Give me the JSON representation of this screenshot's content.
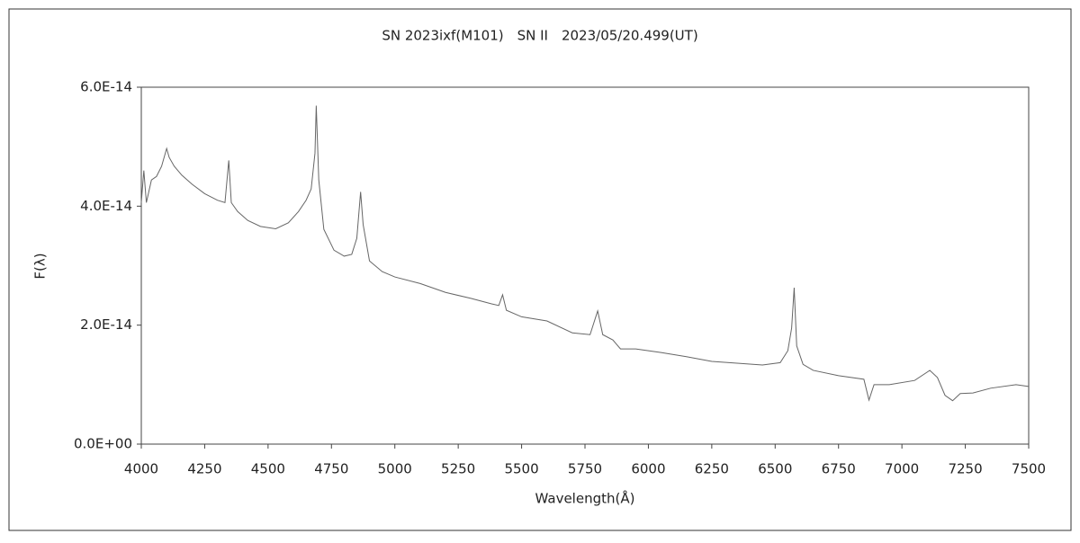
{
  "chart_data": {
    "type": "line",
    "title": "SN 2023ixf(M101)　SN II　2023/05/20.499(UT)",
    "x_label": "Wavelength(Å)",
    "y_label": "F(λ)",
    "xlim": [
      4000,
      7500
    ],
    "xticks": [
      4000,
      4250,
      4500,
      4750,
      5000,
      5250,
      5500,
      5750,
      6000,
      6250,
      6500,
      6750,
      7000,
      7250,
      7500
    ],
    "ylim": [
      0,
      6e-14
    ],
    "yticks": [
      {
        "value": 0,
        "label": "0.0E+00"
      },
      {
        "value": 2e-14,
        "label": "2.0E-14"
      },
      {
        "value": 4e-14,
        "label": "4.0E-14"
      },
      {
        "value": 6e-14,
        "label": "6.0E-14"
      }
    ],
    "series": [
      {
        "color": "#666666",
        "x": [
          4000,
          4010,
          4020,
          4040,
          4060,
          4080,
          4100,
          4110,
          4130,
          4160,
          4200,
          4250,
          4300,
          4330,
          4345,
          4355,
          4380,
          4420,
          4470,
          4530,
          4580,
          4620,
          4650,
          4670,
          4685,
          4690,
          4700,
          4720,
          4760,
          4800,
          4830,
          4850,
          4865,
          4875,
          4900,
          4950,
          5000,
          5100,
          5200,
          5300,
          5380,
          5410,
          5425,
          5440,
          5500,
          5600,
          5700,
          5770,
          5800,
          5820,
          5860,
          5890,
          5950,
          6050,
          6150,
          6250,
          6350,
          6450,
          6520,
          6550,
          6565,
          6575,
          6585,
          6610,
          6650,
          6750,
          6850,
          6870,
          6890,
          6950,
          7050,
          7110,
          7140,
          7170,
          7200,
          7230,
          7280,
          7350,
          7450,
          7500
        ],
        "values": [
          4.06e-14,
          4.6e-14,
          4.06e-14,
          4.44e-14,
          4.5e-14,
          4.67e-14,
          4.97e-14,
          4.82e-14,
          4.67e-14,
          4.52e-14,
          4.37e-14,
          4.21e-14,
          4.1e-14,
          4.06e-14,
          4.77e-14,
          4.06e-14,
          3.91e-14,
          3.76e-14,
          3.66e-14,
          3.62e-14,
          3.72e-14,
          3.91e-14,
          4.1e-14,
          4.29e-14,
          4.89e-14,
          5.69e-14,
          4.44e-14,
          3.61e-14,
          3.26e-14,
          3.16e-14,
          3.19e-14,
          3.46e-14,
          4.24e-14,
          3.69e-14,
          3.08e-14,
          2.9e-14,
          2.81e-14,
          2.7e-14,
          2.55e-14,
          2.45e-14,
          2.36e-14,
          2.33e-14,
          2.51e-14,
          2.25e-14,
          2.14e-14,
          2.07e-14,
          1.87e-14,
          1.84e-14,
          2.24e-14,
          1.84e-14,
          1.75e-14,
          1.6e-14,
          1.6e-14,
          1.54e-14,
          1.47e-14,
          1.39e-14,
          1.36e-14,
          1.33e-14,
          1.37e-14,
          1.57e-14,
          1.95e-14,
          2.63e-14,
          1.65e-14,
          1.34e-14,
          1.24e-14,
          1.15e-14,
          1.09e-14,
          7.4e-15,
          1e-14,
          1e-14,
          1.07e-14,
          1.24e-14,
          1.12e-14,
          8.2e-15,
          7.3e-15,
          8.5e-15,
          8.6e-15,
          9.4e-15,
          1e-14,
          9.7e-15
        ]
      }
    ]
  }
}
